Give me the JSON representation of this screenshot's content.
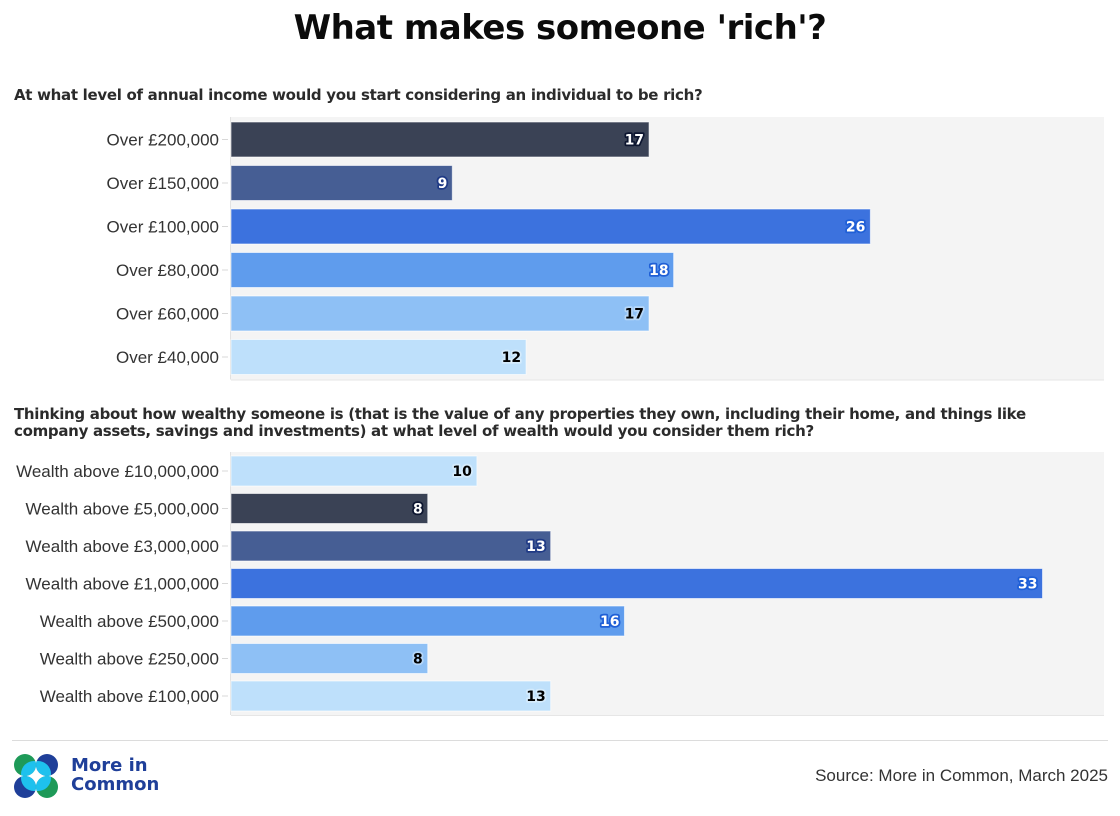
{
  "title": "What makes someone 'rich'?",
  "chart_data": [
    {
      "type": "bar",
      "orientation": "horizontal",
      "title": "At what level of annual income would you start considering an individual to be rich?",
      "categories": [
        "Over £200,000",
        "Over £150,000",
        "Over £100,000",
        "Over £80,000",
        "Over £60,000",
        "Over £40,000"
      ],
      "values": [
        17,
        9,
        26,
        18,
        17,
        12
      ],
      "colors": [
        "#3a4255",
        "#465e94",
        "#3c72de",
        "#5f9ced",
        "#8ec0f5",
        "#bee0fb"
      ],
      "label_colors": [
        "#ffffff",
        "#ffffff",
        "#ffffff",
        "#ffffff",
        "#000000",
        "#000000"
      ],
      "xlim": [
        0,
        35.5
      ],
      "xlabel": "",
      "ylabel": "",
      "grid": false,
      "legend": "none"
    },
    {
      "type": "bar",
      "orientation": "horizontal",
      "title": "Thinking about how wealthy someone is (that is the value of any properties they own, including their home, and things like company assets, savings and investments) at what level of wealth would you consider them rich?",
      "categories": [
        "Wealth above £10,000,000",
        "Wealth above £5,000,000",
        "Wealth above £3,000,000",
        "Wealth above £1,000,000",
        "Wealth above £500,000",
        "Wealth above £250,000",
        "Wealth above £100,000"
      ],
      "values": [
        10,
        8,
        13,
        33,
        16,
        8,
        13
      ],
      "colors": [
        "#bee0fb",
        "#3a4255",
        "#465e94",
        "#3c72de",
        "#5f9ced",
        "#8ec0f5",
        "#bee0fb"
      ],
      "label_colors": [
        "#000000",
        "#ffffff",
        "#ffffff",
        "#ffffff",
        "#ffffff",
        "#000000",
        "#000000"
      ],
      "xlim": [
        0,
        35.5
      ],
      "xlabel": "",
      "ylabel": "",
      "grid": false,
      "legend": "none"
    }
  ],
  "footer": {
    "brand_line1": "More in",
    "brand_line2": "Common",
    "source": "Source: More in Common, March 2025",
    "logo_icon": "more-in-common-logo-icon"
  }
}
